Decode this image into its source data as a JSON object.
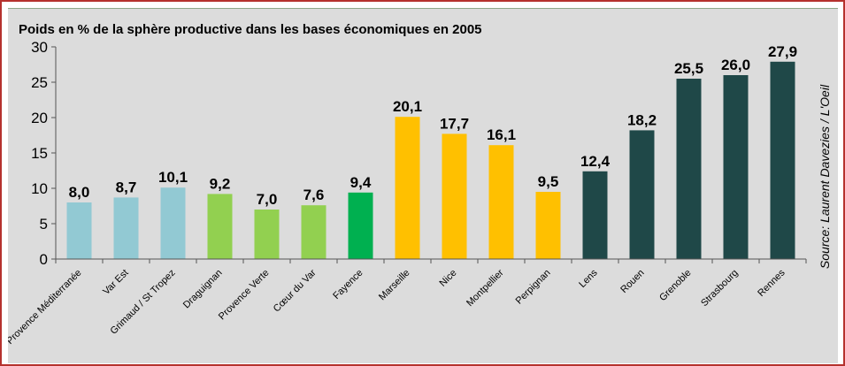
{
  "chart_data": {
    "type": "bar",
    "title": "Poids en % de la sphère productive dans les bases économiques en 2005",
    "source": "Source: Laurent Davezies / L'Oeil",
    "ylim": [
      0,
      30
    ],
    "yticks": [
      0,
      5,
      10,
      15,
      20,
      25,
      30
    ],
    "grid": false,
    "categories": [
      "Provence Méditerranée",
      "Var Est",
      "Grimaud / St Tropez",
      "Draguignan",
      "Provence Verte",
      "Cœur du Var",
      "Fayence",
      "Marseille",
      "Nice",
      "Montpellier",
      "Perpignan",
      "Lens",
      "Rouen",
      "Grenoble",
      "Strasbourg",
      "Rennes"
    ],
    "values": [
      8.0,
      8.7,
      10.1,
      9.2,
      7.0,
      7.6,
      9.4,
      20.1,
      17.7,
      16.1,
      9.5,
      12.4,
      18.2,
      25.5,
      26.0,
      27.9
    ],
    "value_labels": [
      "8,0",
      "8,7",
      "10,1",
      "9,2",
      "7,0",
      "7,6",
      "9,4",
      "20,1",
      "17,7",
      "16,1",
      "9,5",
      "12,4",
      "18,2",
      "25,5",
      "26,0",
      "27,9"
    ],
    "colors": [
      "#92c9d3",
      "#92c9d3",
      "#92c9d3",
      "#92d050",
      "#92d050",
      "#92d050",
      "#00b050",
      "#ffc000",
      "#ffc000",
      "#ffc000",
      "#ffc000",
      "#1f4848",
      "#1f4848",
      "#1f4848",
      "#1f4848",
      "#1f4848"
    ]
  }
}
